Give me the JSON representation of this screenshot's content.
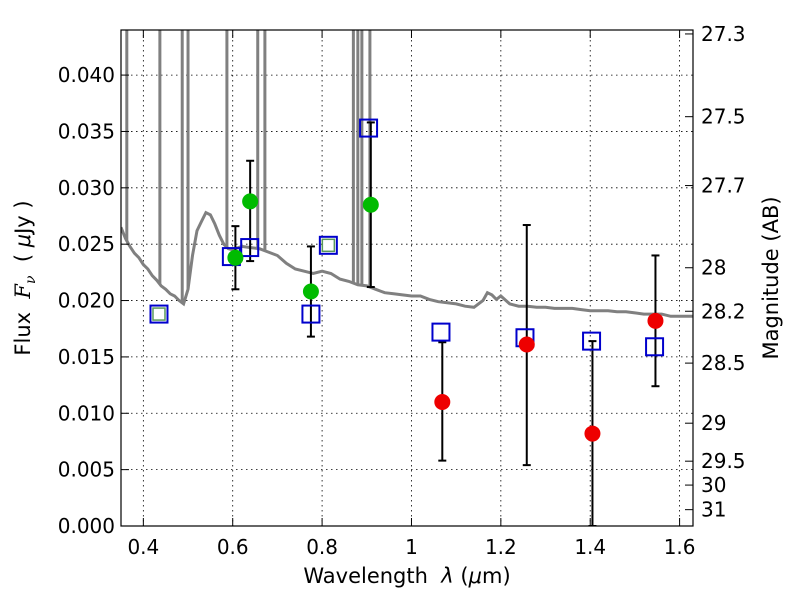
{
  "chart_data": {
    "type": "scatter",
    "xlabel": "Wavelength  λ (μm)",
    "ylabel": "Flux  F_ν  ( μJy )",
    "ylabel_right": "Magnitude (AB)",
    "xlim": [
      0.35,
      1.63
    ],
    "ylim": [
      0.0,
      0.044
    ],
    "grid": true,
    "x_ticks": [
      0.4,
      0.6,
      0.8,
      1.0,
      1.2,
      1.4,
      1.6
    ],
    "x_tick_labels": [
      "0.4",
      "0.6",
      "0.8",
      "1",
      "1.2",
      "1.4",
      "1.6"
    ],
    "y_ticks": [
      0.0,
      0.005,
      0.01,
      0.015,
      0.02,
      0.025,
      0.03,
      0.035,
      0.04
    ],
    "y_tick_labels": [
      "0.000",
      "0.005",
      "0.010",
      "0.015",
      "0.020",
      "0.025",
      "0.030",
      "0.035",
      "0.040"
    ],
    "right_ticks": [
      {
        "flux": 0.04365,
        "label": "27.3"
      },
      {
        "flux": 0.03631,
        "label": "27.5"
      },
      {
        "flux": 0.0302,
        "label": "27.7"
      },
      {
        "flux": 0.02291,
        "label": "28"
      },
      {
        "flux": 0.01905,
        "label": "28.2"
      },
      {
        "flux": 0.01445,
        "label": "28.5"
      },
      {
        "flux": 0.00912,
        "label": "29"
      },
      {
        "flux": 0.00575,
        "label": "29.5"
      },
      {
        "flux": 0.00363,
        "label": "30"
      },
      {
        "flux": 0.00145,
        "label": "31"
      }
    ],
    "series": [
      {
        "kind": "line",
        "color": "#808080",
        "x": [
          0.35,
          0.36,
          0.37,
          0.38,
          0.39,
          0.4,
          0.41,
          0.42,
          0.43,
          0.44,
          0.45,
          0.46,
          0.47,
          0.48,
          0.49,
          0.5,
          0.51,
          0.52,
          0.53,
          0.54,
          0.55,
          0.56,
          0.57,
          0.58,
          0.59,
          0.6,
          0.62,
          0.64,
          0.66,
          0.68,
          0.7,
          0.72,
          0.74,
          0.76,
          0.78,
          0.8,
          0.82,
          0.84,
          0.86,
          0.88,
          0.9,
          0.92,
          0.94,
          0.96,
          0.98,
          1.0,
          1.02,
          1.04,
          1.06,
          1.08,
          1.1,
          1.12,
          1.14,
          1.16,
          1.17,
          1.18,
          1.19,
          1.2,
          1.22,
          1.24,
          1.26,
          1.28,
          1.3,
          1.32,
          1.34,
          1.36,
          1.38,
          1.4,
          1.42,
          1.44,
          1.46,
          1.48,
          1.5,
          1.52,
          1.54,
          1.56,
          1.58,
          1.6,
          1.63
        ],
        "y": [
          0.0265,
          0.0255,
          0.0248,
          0.0242,
          0.0238,
          0.0232,
          0.0228,
          0.0222,
          0.0218,
          0.0213,
          0.021,
          0.0206,
          0.0204,
          0.02,
          0.0197,
          0.021,
          0.024,
          0.0262,
          0.027,
          0.0278,
          0.0276,
          0.0268,
          0.0258,
          0.025,
          0.0246,
          0.0245,
          0.0248,
          0.0247,
          0.0246,
          0.0243,
          0.024,
          0.0233,
          0.0228,
          0.0226,
          0.0224,
          0.0226,
          0.0224,
          0.0219,
          0.0217,
          0.0214,
          0.0213,
          0.021,
          0.0207,
          0.0206,
          0.0205,
          0.0204,
          0.0204,
          0.0201,
          0.0199,
          0.0198,
          0.0197,
          0.0195,
          0.0194,
          0.02,
          0.0207,
          0.0205,
          0.0201,
          0.0204,
          0.0197,
          0.0195,
          0.0195,
          0.0194,
          0.0194,
          0.0193,
          0.0193,
          0.0193,
          0.0192,
          0.0191,
          0.0191,
          0.0191,
          0.019,
          0.019,
          0.0189,
          0.0188,
          0.0188,
          0.0188,
          0.0186,
          0.0186,
          0.0186
        ]
      },
      {
        "kind": "spikes",
        "color": "#808080",
        "x": [
          0.363,
          0.437,
          0.487,
          0.5,
          0.587,
          0.656,
          0.672,
          0.87,
          0.88,
          0.889,
          0.907
        ],
        "top": [
          0.044,
          0.044,
          0.044,
          0.044,
          0.044,
          0.044,
          0.044,
          0.044,
          0.044,
          0.044,
          0.044
        ]
      },
      {
        "kind": "markers",
        "marker": "open-square",
        "color": "#0000cc",
        "x": [
          0.435,
          0.597,
          0.638,
          0.775,
          0.814,
          0.904,
          1.066,
          1.254,
          1.403,
          1.544
        ],
        "y": [
          0.0188,
          0.0239,
          0.0247,
          0.0188,
          0.0249,
          0.0353,
          0.0172,
          0.0167,
          0.0164,
          0.0159
        ],
        "inner_green": [
          true,
          false,
          false,
          false,
          true,
          false,
          false,
          false,
          false,
          false
        ]
      },
      {
        "kind": "markers",
        "marker": "circle",
        "color": "#00bb00",
        "x": [
          0.606,
          0.639,
          0.775,
          0.909
        ],
        "y": [
          0.0238,
          0.0288,
          0.0208,
          0.0285
        ],
        "err_low": [
          0.021,
          0.0235,
          0.0168,
          0.0212
        ],
        "err_high": [
          0.0266,
          0.0324,
          0.0248,
          0.0358
        ]
      },
      {
        "kind": "markers",
        "marker": "circle",
        "color": "#ee0000",
        "x": [
          1.069,
          1.258,
          1.405,
          1.546
        ],
        "y": [
          0.011,
          0.0161,
          0.0082,
          0.0182
        ],
        "err_low": [
          0.0058,
          0.0054,
          0.0,
          0.0124
        ],
        "err_high": [
          0.0163,
          0.0267,
          0.0164,
          0.024
        ]
      }
    ]
  }
}
